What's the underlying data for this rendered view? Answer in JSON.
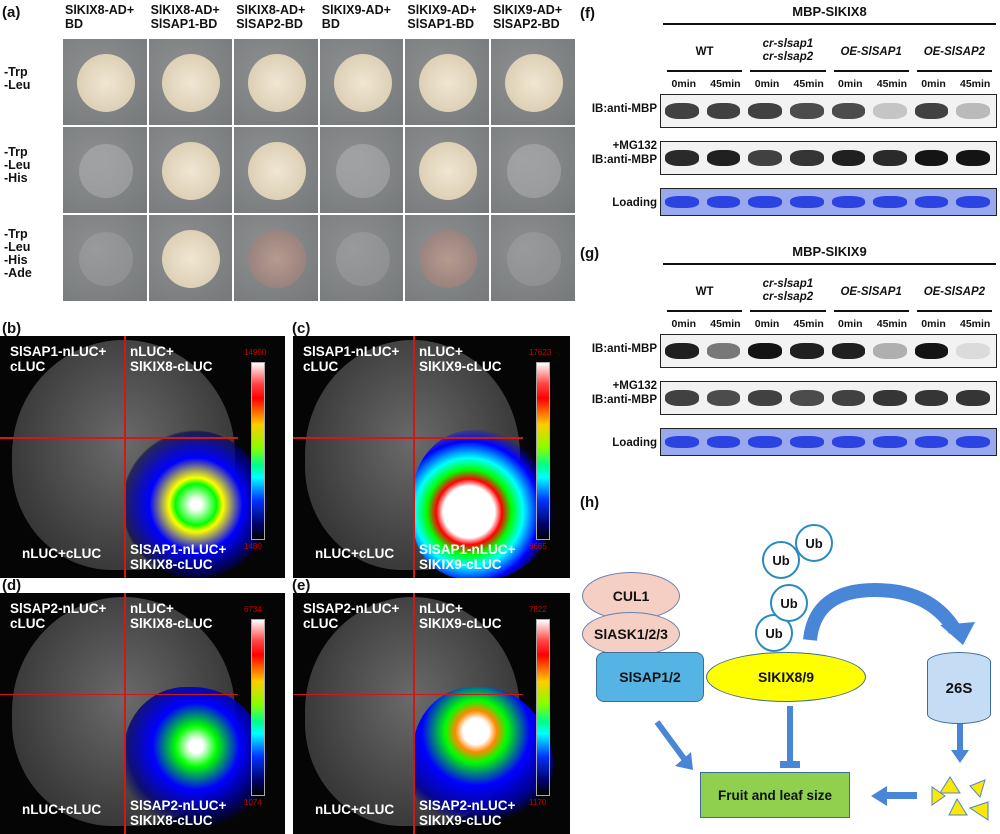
{
  "panel_a": {
    "label": "(a)",
    "columns": [
      "SlKIX8-AD+\nBD",
      "SlKIX8-AD+\nSlSAP1-BD",
      "SlKIX8-AD+\nSlSAP2-BD",
      "SlKIX9-AD+\nBD",
      "SlKIX9-AD+\nSlSAP1-BD",
      "SlKIX9-AD+\nSlSAP2-BD"
    ],
    "rows": [
      "-Trp\n-Leu",
      "-Trp\n-Leu\n-His",
      "-Trp\n-Leu\n-His\n-Ade"
    ],
    "growth": [
      [
        1,
        1,
        1,
        1,
        1,
        1
      ],
      [
        0.2,
        1,
        0.8,
        0.2,
        1,
        0.2
      ],
      [
        0.05,
        1,
        0.6,
        0.05,
        0.7,
        0.05
      ]
    ]
  },
  "luc_panels": [
    {
      "label": "(b)",
      "tl": "SlSAP1-nLUC+\ncLUC",
      "tr": "nLUC+\nSlKIX8-cLUC",
      "bl": "nLUC+cLUC",
      "br": "SlSAP1-nLUC+\nSlKIX8-cLUC",
      "cb_max": "14900",
      "cb_min": "1480"
    },
    {
      "label": "(c)",
      "tl": "SlSAP1-nLUC+\ncLUC",
      "tr": "nLUC+\nSlKIX9-cLUC",
      "bl": "nLUC+cLUC",
      "br": "SlSAP1-nLUC+\nSlKIX9-cLUC",
      "cb_max": "17623",
      "cb_min": "6665"
    },
    {
      "label": "(d)",
      "tl": "SlSAP2-nLUC+\ncLUC",
      "tr": "nLUC+\nSlKIX8-cLUC",
      "bl": "nLUC+cLUC",
      "br": "SlSAP2-nLUC+\nSlKIX8-cLUC",
      "cb_max": "6734",
      "cb_min": "1074"
    },
    {
      "label": "(e)",
      "tl": "SlSAP2-nLUC+\ncLUC",
      "tr": "nLUC+\nSlKIX9-cLUC",
      "bl": "nLUC+cLUC",
      "br": "SlSAP2-nLUC+\nSlKIX9-cLUC",
      "cb_max": "7822",
      "cb_min": "1170"
    }
  ],
  "western": [
    {
      "label": "(f)",
      "title": "MBP-SlKIX8",
      "groups": [
        "WT",
        "cr-slsap1\ncr-slsap2",
        "OE-SlSAP1",
        "OE-SlSAP2"
      ],
      "times": [
        "0min",
        "45min"
      ],
      "rows": [
        "IB:anti-MBP",
        "+MG132\nIB:anti-MBP",
        "Loading"
      ],
      "ib": [
        0.8,
        0.8,
        0.8,
        0.75,
        0.75,
        0.2,
        0.8,
        0.25
      ],
      "mg132": [
        0.9,
        0.95,
        0.8,
        0.85,
        0.95,
        0.9,
        1,
        1
      ]
    },
    {
      "label": "(g)",
      "title": "MBP-SlKIX9",
      "groups": [
        "WT",
        "cr-slsap1\ncr-slsap2",
        "OE-SlSAP1",
        "OE-SlSAP2"
      ],
      "times": [
        "0min",
        "45min"
      ],
      "rows": [
        "IB:anti-MBP",
        "+MG132\nIB:anti-MBP",
        "Loading"
      ],
      "ib": [
        0.95,
        0.55,
        1,
        0.95,
        0.95,
        0.3,
        1,
        0.1
      ],
      "mg132": [
        0.8,
        0.75,
        0.8,
        0.75,
        0.8,
        0.85,
        0.85,
        0.85
      ]
    }
  ],
  "panel_h": {
    "label": "(h)",
    "cul1": "CUL1",
    "sask": "SlASK1/2/3",
    "sap": "SlSAP1/2",
    "kix": "SlKIX8/9",
    "ub": "Ub",
    "proteasome": "26S",
    "outcome": "Fruit and leaf size",
    "colors": {
      "pink": "#f5cfc4",
      "blue": "#55b4e4",
      "yellow": "#ffff00",
      "cyl": "#c5dcf5",
      "green": "#8fd14f",
      "arrow": "#4a86d8"
    }
  }
}
